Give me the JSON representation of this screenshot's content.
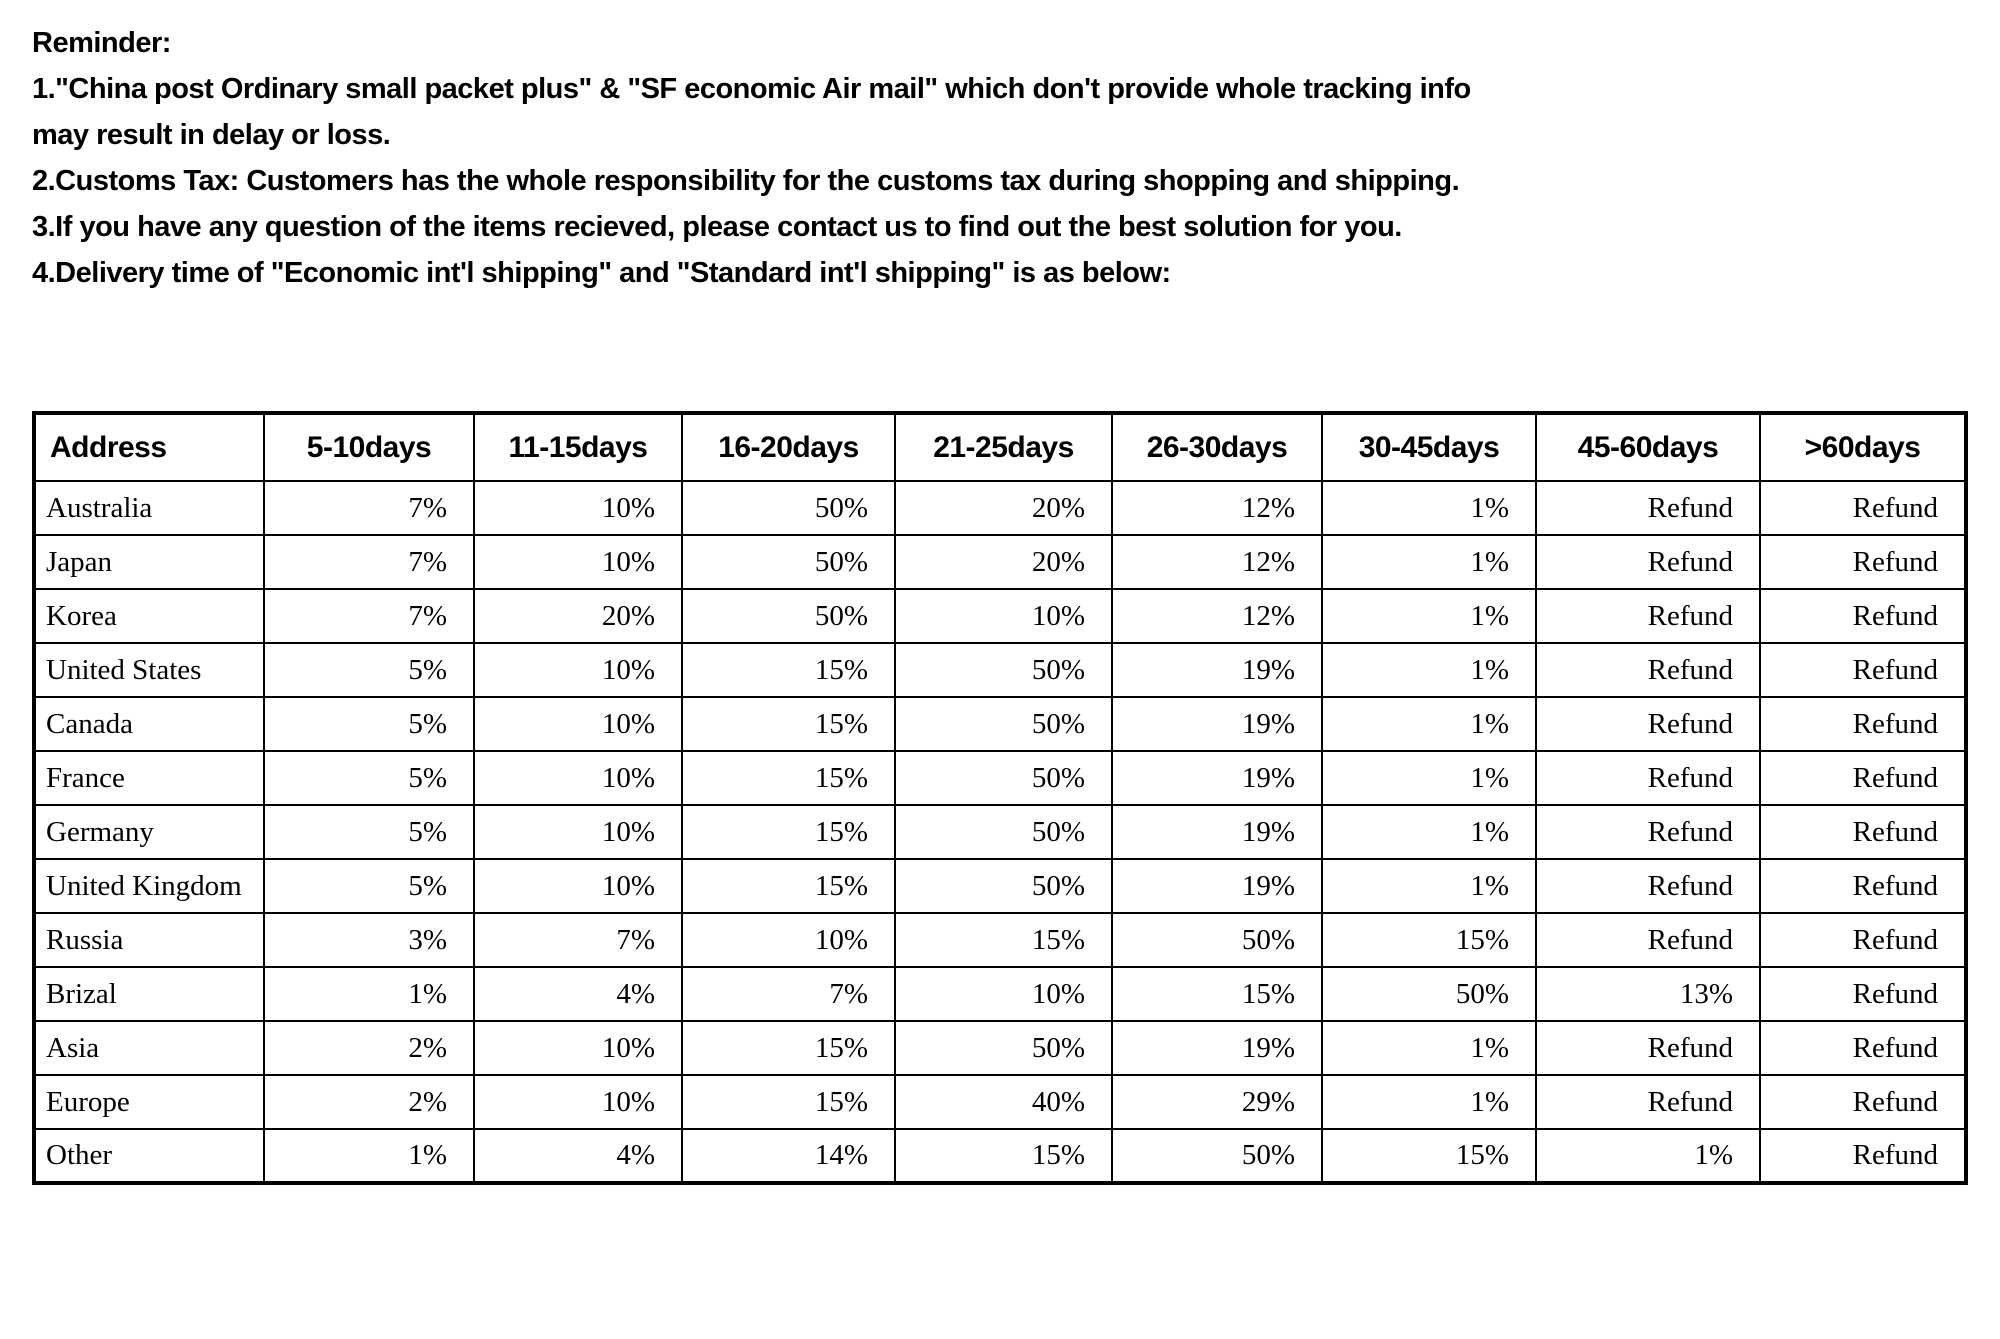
{
  "page": {
    "background_color": "#ffffff",
    "text_color": "#000000"
  },
  "reminder": {
    "title": "Reminder:",
    "lines": [
      "1.\"China post Ordinary small packet plus\" & \"SF economic Air mail\" which don't provide whole tracking info",
      "may result in delay or loss.",
      "2.Customs Tax: Customers has the whole responsibility for the customs tax during shopping and shipping.",
      "3.If you have any question of the items recieved, please contact us to find out the best solution for you.",
      "4.Delivery time of \"Economic int'l shipping\" and \"Standard int'l shipping\" is as below:"
    ]
  },
  "table": {
    "columns": [
      "Address",
      "5-10days",
      "11-15days",
      "16-20days",
      "21-25days",
      "26-30days",
      "30-45days",
      "45-60days",
      ">60days"
    ],
    "rows": [
      {
        "address": "Australia",
        "values": [
          "7%",
          "10%",
          "50%",
          "20%",
          "12%",
          "1%",
          "Refund",
          "Refund"
        ]
      },
      {
        "address": "Japan",
        "values": [
          "7%",
          "10%",
          "50%",
          "20%",
          "12%",
          "1%",
          "Refund",
          "Refund"
        ]
      },
      {
        "address": "Korea",
        "values": [
          "7%",
          "20%",
          "50%",
          "10%",
          "12%",
          "1%",
          "Refund",
          "Refund"
        ]
      },
      {
        "address": "United States",
        "values": [
          "5%",
          "10%",
          "15%",
          "50%",
          "19%",
          "1%",
          "Refund",
          "Refund"
        ]
      },
      {
        "address": "Canada",
        "values": [
          "5%",
          "10%",
          "15%",
          "50%",
          "19%",
          "1%",
          "Refund",
          "Refund"
        ]
      },
      {
        "address": "France",
        "values": [
          "5%",
          "10%",
          "15%",
          "50%",
          "19%",
          "1%",
          "Refund",
          "Refund"
        ]
      },
      {
        "address": "Germany",
        "values": [
          "5%",
          "10%",
          "15%",
          "50%",
          "19%",
          "1%",
          "Refund",
          "Refund"
        ]
      },
      {
        "address": "United Kingdom",
        "values": [
          "5%",
          "10%",
          "15%",
          "50%",
          "19%",
          "1%",
          "Refund",
          "Refund"
        ]
      },
      {
        "address": "Russia",
        "values": [
          "3%",
          "7%",
          "10%",
          "15%",
          "50%",
          "15%",
          "Refund",
          "Refund"
        ]
      },
      {
        "address": "Brizal",
        "values": [
          "1%",
          "4%",
          "7%",
          "10%",
          "15%",
          "50%",
          "13%",
          "Refund"
        ]
      },
      {
        "address": "Asia",
        "values": [
          "2%",
          "10%",
          "15%",
          "50%",
          "19%",
          "1%",
          "Refund",
          "Refund"
        ]
      },
      {
        "address": "Europe",
        "values": [
          "2%",
          "10%",
          "15%",
          "40%",
          "29%",
          "1%",
          "Refund",
          "Refund"
        ]
      },
      {
        "address": "Other",
        "values": [
          "1%",
          "4%",
          "14%",
          "15%",
          "50%",
          "15%",
          "1%",
          "Refund"
        ]
      }
    ]
  }
}
